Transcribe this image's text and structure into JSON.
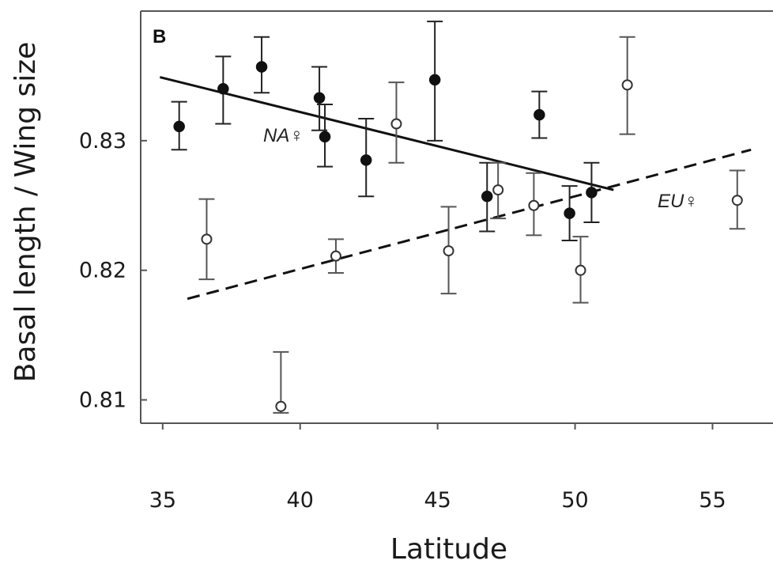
{
  "chart_data": {
    "type": "scatter",
    "panel_label": "B",
    "xlabel": "Latitude",
    "ylabel": "Basal length / Wing size",
    "xlim": [
      34.2,
      57.2
    ],
    "ylim": [
      0.8082,
      0.84
    ],
    "x_ticks": [
      35,
      40,
      45,
      50,
      55
    ],
    "x_tick_labels": [
      "35",
      "40",
      "45",
      "50",
      "55"
    ],
    "y_ticks": [
      0.81,
      0.82,
      0.83
    ],
    "y_tick_labels": [
      "0.81",
      "0.82",
      "0.83"
    ],
    "series": [
      {
        "name": "NA♀",
        "marker": "filled-circle",
        "color": "#111111",
        "points": [
          {
            "x": 35.6,
            "y": 0.8311,
            "lo": 0.8293,
            "hi": 0.833
          },
          {
            "x": 37.2,
            "y": 0.834,
            "lo": 0.8313,
            "hi": 0.8365
          },
          {
            "x": 38.6,
            "y": 0.8357,
            "lo": 0.8337,
            "hi": 0.838
          },
          {
            "x": 40.7,
            "y": 0.8333,
            "lo": 0.8308,
            "hi": 0.8357
          },
          {
            "x": 40.9,
            "y": 0.8303,
            "lo": 0.828,
            "hi": 0.8328
          },
          {
            "x": 42.4,
            "y": 0.8285,
            "lo": 0.8257,
            "hi": 0.8317
          },
          {
            "x": 44.9,
            "y": 0.8347,
            "lo": 0.83,
            "hi": 0.8392
          },
          {
            "x": 46.8,
            "y": 0.8257,
            "lo": 0.823,
            "hi": 0.8283
          },
          {
            "x": 48.7,
            "y": 0.832,
            "lo": 0.8302,
            "hi": 0.8338
          },
          {
            "x": 49.8,
            "y": 0.8244,
            "lo": 0.8223,
            "hi": 0.8265
          },
          {
            "x": 50.6,
            "y": 0.826,
            "lo": 0.8237,
            "hi": 0.8283
          }
        ],
        "trend": {
          "x": [
            34.9,
            51.4
          ],
          "y": [
            0.8349,
            0.8262
          ],
          "style": "solid"
        }
      },
      {
        "name": "EU♀",
        "marker": "open-circle",
        "color": "#111111",
        "points": [
          {
            "x": 36.6,
            "y": 0.8224,
            "lo": 0.8193,
            "hi": 0.8255
          },
          {
            "x": 39.3,
            "y": 0.8095,
            "lo": 0.809,
            "hi": 0.8137
          },
          {
            "x": 41.3,
            "y": 0.8211,
            "lo": 0.8198,
            "hi": 0.8224
          },
          {
            "x": 43.5,
            "y": 0.8313,
            "lo": 0.8283,
            "hi": 0.8345
          },
          {
            "x": 45.4,
            "y": 0.8215,
            "lo": 0.8182,
            "hi": 0.8249
          },
          {
            "x": 47.2,
            "y": 0.8262,
            "lo": 0.824,
            "hi": 0.8283
          },
          {
            "x": 48.5,
            "y": 0.825,
            "lo": 0.8227,
            "hi": 0.8275
          },
          {
            "x": 50.2,
            "y": 0.82,
            "lo": 0.8175,
            "hi": 0.8226
          },
          {
            "x": 51.9,
            "y": 0.8343,
            "lo": 0.8305,
            "hi": 0.838
          },
          {
            "x": 55.9,
            "y": 0.8254,
            "lo": 0.8232,
            "hi": 0.8277
          }
        ],
        "trend": {
          "x": [
            35.9,
            56.4
          ],
          "y": [
            0.8178,
            0.8293
          ],
          "style": "dashed"
        }
      }
    ],
    "annotations": [
      "NA♀",
      "EU♀"
    ],
    "grid": false,
    "legend": "none"
  }
}
